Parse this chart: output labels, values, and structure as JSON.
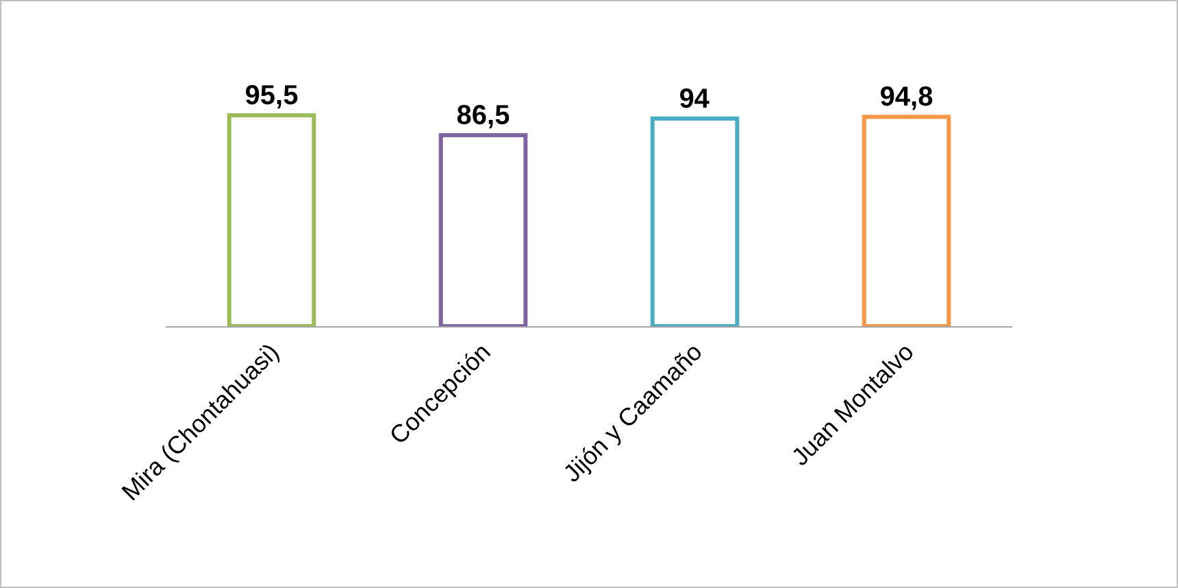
{
  "chart_data": {
    "type": "bar",
    "categories": [
      "Mira (Chontahuasi)",
      "Concepción",
      "Jijón y Caamaño",
      "Juan Montalvo"
    ],
    "values": [
      95.5,
      86.5,
      94,
      94.8
    ],
    "value_labels": [
      "95,5",
      "86,5",
      "94",
      "94,8"
    ],
    "colors": [
      "#9bbb59",
      "#8064a2",
      "#4bacc6",
      "#f79646"
    ],
    "tick_labels": "x"
  }
}
